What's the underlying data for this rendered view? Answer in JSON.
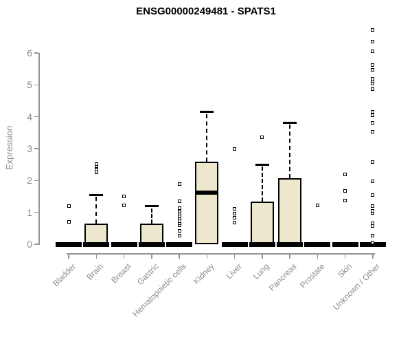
{
  "chart_data": {
    "type": "boxplot",
    "title": "ENSG00000249481 - SPATS1",
    "ylabel": "Expression",
    "xlabel": "",
    "ylim": [
      0,
      6.9
    ],
    "yticks": [
      0,
      1,
      2,
      3,
      4,
      5,
      6
    ],
    "grid": false,
    "legend": "none",
    "colors": {
      "box_fill": "#ece7cd",
      "box_border": "#000000",
      "median": "#000000",
      "axis": "#949494",
      "axis_text": "#8a8a8a",
      "title_text": "#000000",
      "background": "#ffffff"
    },
    "categories": [
      "Bladder",
      "Brain",
      "Breast",
      "Gastric",
      "Hematopoietic cells",
      "Kidney",
      "Liver",
      "Lung",
      "Pancreas",
      "Prostate",
      "Skin",
      "Unknown / Other"
    ],
    "series": [
      {
        "category": "Bladder",
        "q1": 0,
        "median": 0,
        "q3": 0,
        "whisker_low": 0,
        "whisker_high": 0,
        "outliers": [
          0.71,
          1.19
        ]
      },
      {
        "category": "Brain",
        "q1": 0,
        "median": 0,
        "q3": 0.65,
        "whisker_low": 0,
        "whisker_high": 1.55,
        "outliers": [
          2.25,
          2.35,
          2.45,
          2.52
        ]
      },
      {
        "category": "Breast",
        "q1": 0,
        "median": 0,
        "q3": 0,
        "whisker_low": 0,
        "whisker_high": 0,
        "outliers": [
          1.23,
          1.5
        ]
      },
      {
        "category": "Gastric",
        "q1": 0,
        "median": 0,
        "q3": 0.65,
        "whisker_low": 0,
        "whisker_high": 1.19,
        "outliers": []
      },
      {
        "category": "Hematopoietic cells",
        "q1": 0,
        "median": 0,
        "q3": 0,
        "whisker_low": 0,
        "whisker_high": 0,
        "outliers": [
          0.28,
          0.43,
          0.6,
          0.65,
          0.72,
          0.8,
          0.88,
          0.95,
          1.02,
          1.08,
          1.14,
          1.34,
          1.88
        ]
      },
      {
        "category": "Kidney",
        "q1": 0,
        "median": 1.62,
        "q3": 2.59,
        "whisker_low": 0,
        "whisker_high": 4.15,
        "outliers": []
      },
      {
        "category": "Liver",
        "q1": 0,
        "median": 0,
        "q3": 0,
        "whisker_low": 0,
        "whisker_high": 0,
        "outliers": [
          0.69,
          0.84,
          0.95,
          1.12,
          3.0
        ]
      },
      {
        "category": "Lung",
        "q1": 0,
        "median": 0,
        "q3": 1.33,
        "whisker_low": 0,
        "whisker_high": 2.5,
        "outliers": [
          3.35
        ]
      },
      {
        "category": "Pancreas",
        "q1": 0,
        "median": 0,
        "q3": 2.08,
        "whisker_low": 0,
        "whisker_high": 3.82,
        "outliers": []
      },
      {
        "category": "Prostate",
        "q1": 0,
        "median": 0,
        "q3": 0,
        "whisker_low": 0,
        "whisker_high": 0,
        "outliers": [
          1.23
        ]
      },
      {
        "category": "Skin",
        "q1": 0,
        "median": 0,
        "q3": 0,
        "whisker_low": 0,
        "whisker_high": 0,
        "outliers": [
          1.38,
          1.68,
          2.2
        ]
      },
      {
        "category": "Unknown / Other",
        "q1": 0,
        "median": 0,
        "q3": 0,
        "whisker_low": 0,
        "whisker_high": 0,
        "outliers": [
          0.05,
          0.28,
          0.58,
          0.65,
          0.98,
          1.04,
          1.19,
          1.55,
          1.97,
          2.58,
          3.52,
          3.8,
          4.04,
          4.15,
          4.86,
          5.04,
          5.12,
          5.2,
          5.47,
          5.62,
          6.06,
          6.36,
          6.72
        ]
      }
    ]
  }
}
